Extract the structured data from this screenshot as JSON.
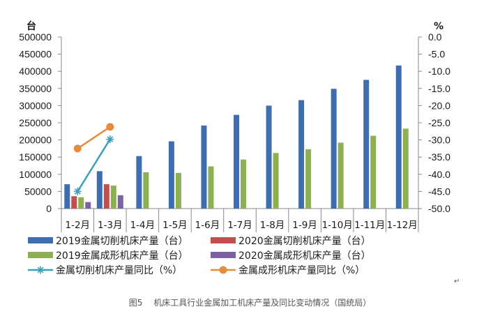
{
  "chart_data": {
    "type": "bar",
    "left_axis_unit": "台",
    "right_axis_unit": "%",
    "categories": [
      "1-2月",
      "1-3月",
      "1-4月",
      "1-5月",
      "1-6月",
      "1-7月",
      "1-8月",
      "1-9月",
      "1-10月",
      "1-11月",
      "1-12月"
    ],
    "left_ticks": [
      "0",
      "50000",
      "100000",
      "150000",
      "200000",
      "250000",
      "300000",
      "350000",
      "400000",
      "450000",
      "500000"
    ],
    "right_ticks": [
      "-50.0",
      "-45.0",
      "-40.0",
      "-35.0",
      "-30.0",
      "-25.0",
      "-20.0",
      "-15.0",
      "-10.0",
      "-5.0",
      "0.0"
    ],
    "ylim_left": [
      0,
      500000
    ],
    "ylim_right": [
      -50,
      0
    ],
    "bar_series": [
      {
        "name": "2019金属切削机床产量（台）",
        "color": "#3e6eb0",
        "values": [
          71000,
          109000,
          153000,
          196000,
          242000,
          273000,
          300000,
          316000,
          349000,
          375000,
          417000
        ]
      },
      {
        "name": "2020金属切削机床产量（台）",
        "color": "#c0504d",
        "values": [
          36000,
          71000,
          null,
          null,
          null,
          null,
          null,
          null,
          null,
          null,
          null
        ]
      },
      {
        "name": "2019金属成形机床产量（台）",
        "color": "#8db052",
        "values": [
          33000,
          67000,
          106000,
          104000,
          123000,
          143000,
          162000,
          173000,
          192000,
          212000,
          233000
        ]
      },
      {
        "name": "2020金属成形机床产量（台）",
        "color": "#7c62a4",
        "values": [
          19000,
          39000,
          null,
          null,
          null,
          null,
          null,
          null,
          null,
          null,
          null
        ]
      }
    ],
    "line_series": [
      {
        "name": "金属切削机床产量同比（%）",
        "color": "#3aa0b8",
        "marker": "star",
        "values": [
          -45.0,
          -29.8,
          null,
          null,
          null,
          null,
          null,
          null,
          null,
          null,
          null
        ]
      },
      {
        "name": "金属成形机床产量同比（%）",
        "color": "#e68a3e",
        "marker": "circle",
        "values": [
          -32.5,
          -26.2,
          null,
          null,
          null,
          null,
          null,
          null,
          null,
          null,
          null
        ]
      }
    ],
    "legend_position": "bottom",
    "grid": false
  },
  "caption": "图5　 机床工具行业金属加工机床产量及同比变动情况（国统局）",
  "stray_mark": "↵"
}
